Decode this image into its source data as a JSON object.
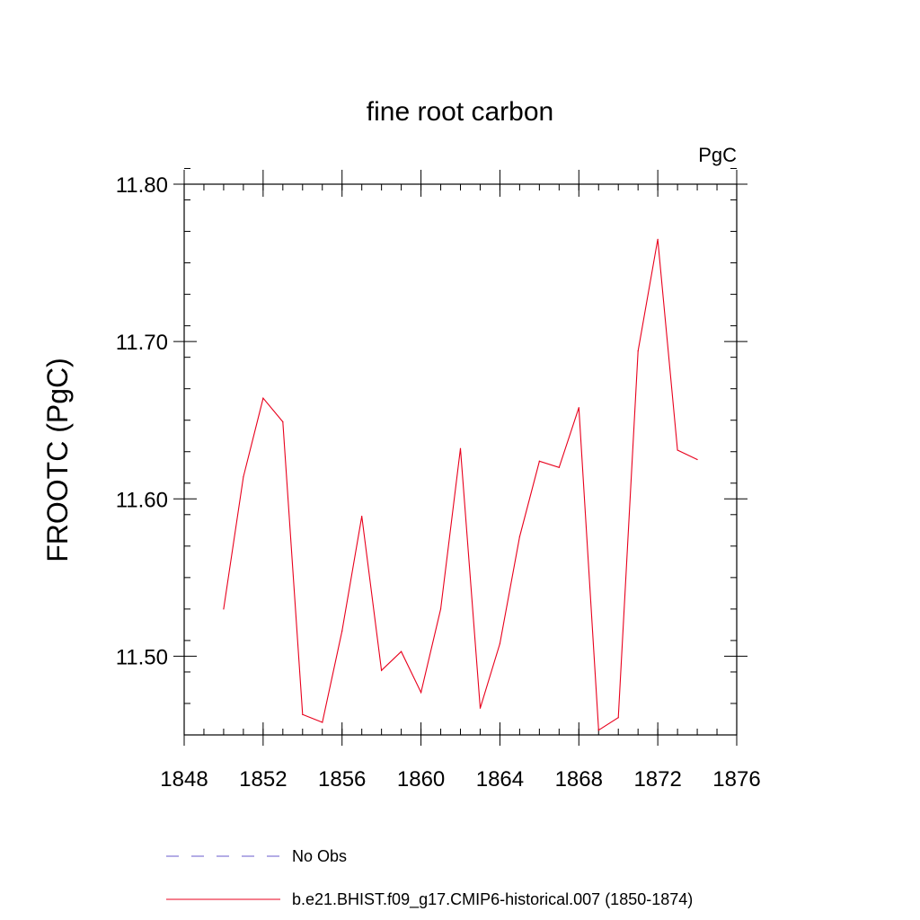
{
  "chart_data": {
    "type": "line",
    "title": "fine root carbon",
    "units": "PgC",
    "xlabel": "",
    "ylabel": "FROOTC  (PgC)",
    "xlim": [
      1848,
      1876
    ],
    "ylim": [
      11.45,
      11.8
    ],
    "x_major_ticks": [
      1848,
      1852,
      1856,
      1860,
      1864,
      1868,
      1872,
      1876
    ],
    "x_tick_labels": [
      "1848",
      "1852",
      "1856",
      "1860",
      "1864",
      "1868",
      "1872",
      "1876"
    ],
    "y_major_ticks": [
      11.5,
      11.6,
      11.7,
      11.8
    ],
    "y_tick_labels": [
      "11.50",
      "11.60",
      "11.70",
      "11.80"
    ],
    "y_minor_step": 0.02,
    "x_minor_step": 1,
    "series": [
      {
        "name": "b.e21.BHIST.f09_g17.CMIP6-historical.007 (1850-1874)",
        "color": "#e8001c",
        "style": "solid",
        "x": [
          1850,
          1851,
          1852,
          1853,
          1854,
          1855,
          1856,
          1857,
          1858,
          1859,
          1860,
          1861,
          1862,
          1863,
          1864,
          1865,
          1866,
          1867,
          1868,
          1869,
          1870,
          1871,
          1872,
          1873,
          1874
        ],
        "values": [
          11.53,
          11.614,
          11.664,
          11.649,
          11.463,
          11.458,
          11.516,
          11.589,
          11.491,
          11.503,
          11.477,
          11.53,
          11.632,
          11.467,
          11.508,
          11.576,
          11.624,
          11.62,
          11.658,
          11.453,
          11.461,
          11.694,
          11.765,
          11.631,
          11.625
        ]
      }
    ],
    "legend": [
      {
        "label": "No Obs",
        "color": "#6a5acd",
        "style": "dashed"
      },
      {
        "label": "b.e21.BHIST.f09_g17.CMIP6-historical.007 (1850-1874)",
        "color": "#e8001c",
        "style": "solid"
      }
    ]
  }
}
